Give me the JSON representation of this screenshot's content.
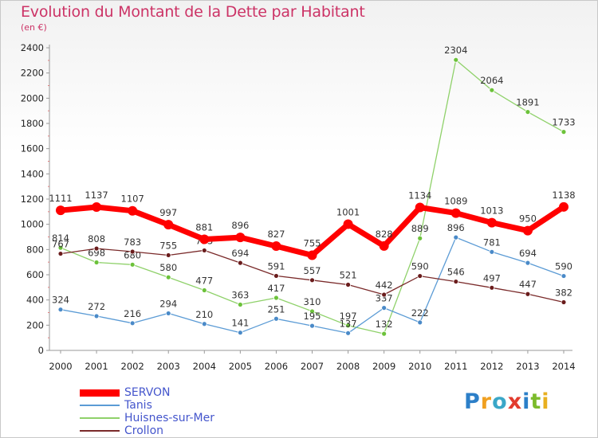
{
  "header": {
    "title": "Evolution du Montant de la Dette par Habitant",
    "subtitle": "(en €)"
  },
  "brand": {
    "chars": [
      {
        "c": "P",
        "color": "#2c7fc8"
      },
      {
        "c": "r",
        "color": "#f0a020"
      },
      {
        "c": "o",
        "color": "#3aa7c8"
      },
      {
        "c": "x",
        "color": "#e23b2e"
      },
      {
        "c": "i",
        "color": "#2c7fc8"
      },
      {
        "c": "t",
        "color": "#7cbb2c"
      },
      {
        "c": "i",
        "color": "#e8b020"
      }
    ]
  },
  "chart_data": {
    "type": "line",
    "x": [
      "2000",
      "2001",
      "2002",
      "2003",
      "2004",
      "2005",
      "2006",
      "2007",
      "2008",
      "2009",
      "2010",
      "2011",
      "2012",
      "2013",
      "2014"
    ],
    "ylim": [
      0,
      2400
    ],
    "yticks": [
      "0",
      "200",
      "400",
      "600",
      "800",
      "1000",
      "1200",
      "1400",
      "1600",
      "1800",
      "2000",
      "2200",
      "2400"
    ],
    "grid": false,
    "legend_position": "bottom-left",
    "series": [
      {
        "name": "Huisnes-sur-Mer",
        "color": "#8fd16a",
        "dot": "#6cc23a",
        "width": 1.3,
        "r": 3,
        "values": [
          814,
          698,
          680,
          580,
          477,
          363,
          417,
          310,
          197,
          132,
          889,
          2304,
          2064,
          1891,
          1733
        ],
        "labels": [
          "814",
          "698",
          "680",
          "580",
          "477",
          "363",
          "417",
          "310",
          "197",
          "132",
          "889",
          "2304",
          "2064",
          "1891",
          "1733"
        ]
      },
      {
        "name": "Tanis",
        "color": "#5b9bd5",
        "dot": "#4a8ac8",
        "width": 1.3,
        "r": 3,
        "values": [
          324,
          272,
          216,
          294,
          210,
          141,
          251,
          195,
          137,
          337,
          222,
          896,
          781,
          694,
          590
        ],
        "labels": [
          "324",
          "272",
          "216",
          "294",
          "210",
          "141",
          "251",
          "195",
          "137",
          "337",
          "222",
          "896",
          "781",
          "694",
          "590"
        ]
      },
      {
        "name": "Crollon",
        "color": "#7a2a2a",
        "dot": "#6a1c1c",
        "width": 1.3,
        "r": 3,
        "values": [
          767,
          808,
          783,
          755,
          793,
          694,
          591,
          557,
          521,
          442,
          590,
          546,
          497,
          447,
          382
        ],
        "labels": [
          "767",
          "808",
          "783",
          "755",
          "793",
          "694",
          "591",
          "557",
          "521",
          "442",
          "590",
          "546",
          "497",
          "447",
          "382"
        ]
      },
      {
        "name": "SERVON",
        "color": "#ff0000",
        "dot": "#ff0000",
        "width": 7,
        "r": 6,
        "values": [
          1111,
          1137,
          1107,
          997,
          881,
          896,
          827,
          755,
          1001,
          828,
          1134,
          1089,
          1013,
          950,
          1138
        ],
        "labels": [
          "1111",
          "1137",
          "1107",
          "997",
          "881",
          "896",
          "827",
          "755",
          "1001",
          "828",
          "1134",
          "1089",
          "1013",
          "950",
          "1138"
        ]
      }
    ],
    "legend": [
      "SERVON",
      "Tanis",
      "Huisnes-sur-Mer",
      "Crollon"
    ]
  }
}
